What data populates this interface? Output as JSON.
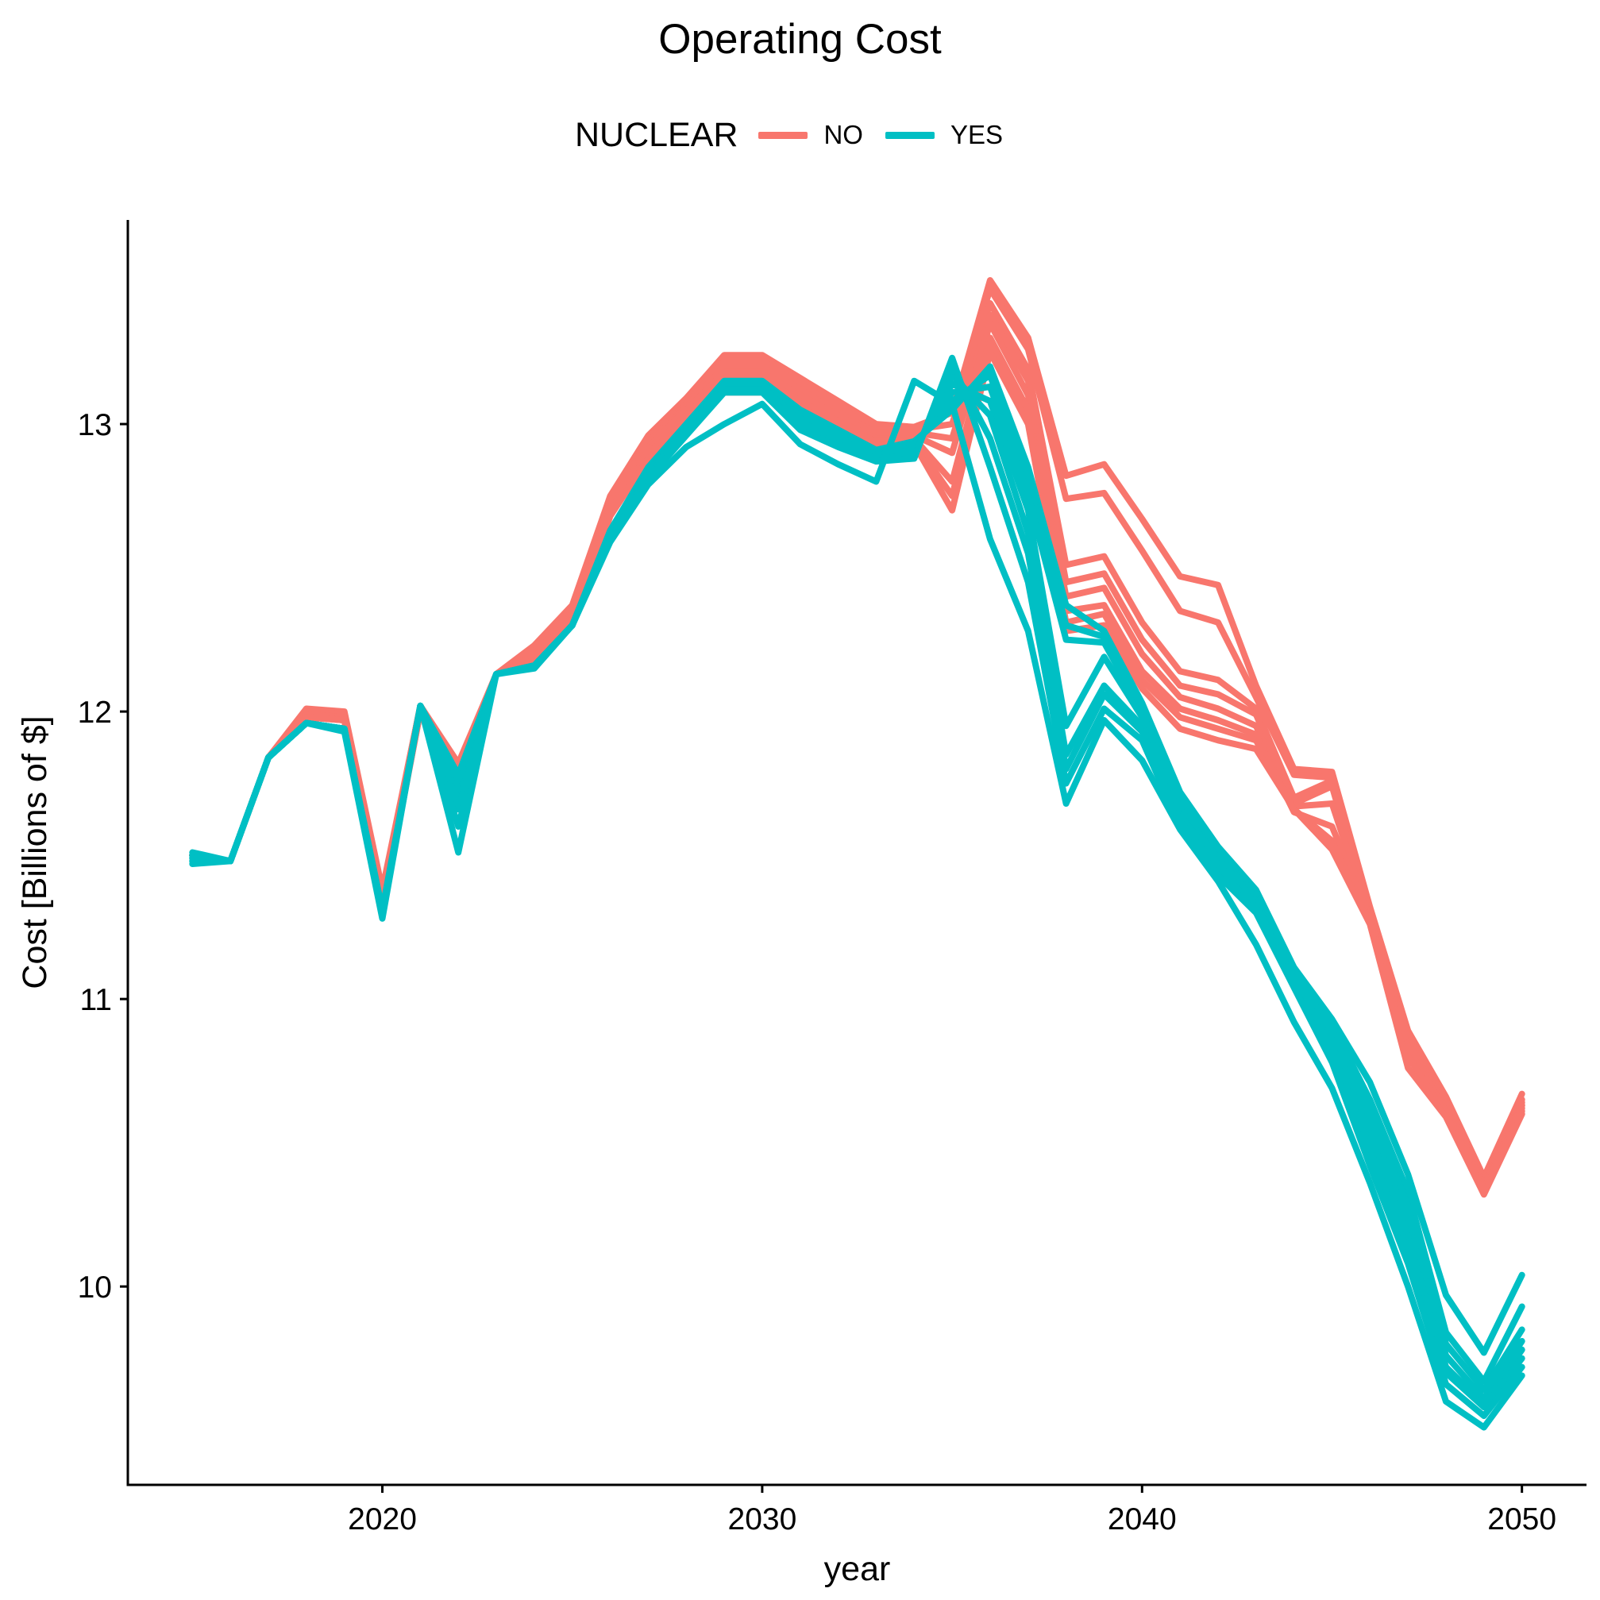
{
  "chart_data": {
    "type": "line",
    "title": "Operating Cost",
    "xlabel": "year",
    "ylabel": "Cost [Billions of $]",
    "xlim": [
      2013.3,
      2051.7
    ],
    "ylim": [
      9.31,
      13.71
    ],
    "x_ticks": [
      2020,
      2030,
      2040,
      2050
    ],
    "y_ticks": [
      10,
      11,
      12,
      13
    ],
    "grid": false,
    "legend": {
      "title": "NUCLEAR",
      "placement": "top",
      "entries": [
        {
          "label": "NO",
          "color": "#F8766D"
        },
        {
          "label": "YES",
          "color": "#00BFC4"
        }
      ]
    },
    "x": [
      2015,
      2016,
      2017,
      2018,
      2019,
      2020,
      2021,
      2022,
      2023,
      2024,
      2025,
      2026,
      2027,
      2028,
      2029,
      2030,
      2031,
      2032,
      2033,
      2034,
      2035,
      2036,
      2037,
      2038,
      2039,
      2040,
      2041,
      2042,
      2043,
      2044,
      2045,
      2046,
      2047,
      2048,
      2049,
      2050
    ],
    "series": [
      {
        "group": "NO",
        "values": [
          11.5,
          11.48,
          11.84,
          12.01,
          12.0,
          11.38,
          12.02,
          11.82,
          12.13,
          12.23,
          12.37,
          12.75,
          12.96,
          13.09,
          13.24,
          13.24,
          13.16,
          13.08,
          13.0,
          12.99,
          13.04,
          13.5,
          13.3,
          12.82,
          12.86,
          12.67,
          12.47,
          12.44,
          12.09,
          11.8,
          11.79,
          11.32,
          10.89,
          10.66,
          10.38,
          10.67
        ]
      },
      {
        "group": "NO",
        "values": [
          11.5,
          11.48,
          11.84,
          12.0,
          11.99,
          11.37,
          12.02,
          11.81,
          12.13,
          12.22,
          12.36,
          12.74,
          12.95,
          13.08,
          13.23,
          13.23,
          13.15,
          13.07,
          12.99,
          12.99,
          13.04,
          13.47,
          13.26,
          12.74,
          12.76,
          12.56,
          12.35,
          12.31,
          12.05,
          11.78,
          11.77,
          11.31,
          10.88,
          10.65,
          10.37,
          10.65
        ]
      },
      {
        "group": "NO",
        "values": [
          11.5,
          11.48,
          11.84,
          12.0,
          11.99,
          11.36,
          12.02,
          11.8,
          12.13,
          12.21,
          12.35,
          12.73,
          12.94,
          13.07,
          13.22,
          13.22,
          13.14,
          13.06,
          12.98,
          12.98,
          13.0,
          13.42,
          13.19,
          12.51,
          12.54,
          12.31,
          12.14,
          12.11,
          12.01,
          11.7,
          11.76,
          11.3,
          10.87,
          10.64,
          10.36,
          10.64
        ]
      },
      {
        "group": "NO",
        "values": [
          11.5,
          11.48,
          11.84,
          11.99,
          11.98,
          11.35,
          12.02,
          11.79,
          12.13,
          12.2,
          12.34,
          12.72,
          12.93,
          13.06,
          13.2,
          13.2,
          13.12,
          13.04,
          12.97,
          12.97,
          12.95,
          13.38,
          13.15,
          12.45,
          12.48,
          12.25,
          12.09,
          12.06,
          11.99,
          11.68,
          11.74,
          11.29,
          10.86,
          10.63,
          10.35,
          10.63
        ]
      },
      {
        "group": "NO",
        "values": [
          11.5,
          11.48,
          11.84,
          11.99,
          11.98,
          11.34,
          12.01,
          11.78,
          12.13,
          12.19,
          12.33,
          12.71,
          12.92,
          13.05,
          13.18,
          13.18,
          13.1,
          13.03,
          12.96,
          12.96,
          12.9,
          13.35,
          13.1,
          12.4,
          12.43,
          12.2,
          12.05,
          12.01,
          11.95,
          11.67,
          11.68,
          11.28,
          10.85,
          10.62,
          10.35,
          10.63
        ]
      },
      {
        "group": "NO",
        "values": [
          11.5,
          11.48,
          11.84,
          11.98,
          11.97,
          11.33,
          12.01,
          11.78,
          12.13,
          12.18,
          12.32,
          12.7,
          12.91,
          13.03,
          13.16,
          13.16,
          13.08,
          13.01,
          12.95,
          12.95,
          12.8,
          13.3,
          13.05,
          12.35,
          12.37,
          12.14,
          12.01,
          11.97,
          11.92,
          11.65,
          11.6,
          11.28,
          10.83,
          10.61,
          10.34,
          10.62
        ]
      },
      {
        "group": "NO",
        "values": [
          11.5,
          11.48,
          11.84,
          11.98,
          11.97,
          11.32,
          12.0,
          11.77,
          12.13,
          12.17,
          12.31,
          12.69,
          12.9,
          13.01,
          13.14,
          13.14,
          13.06,
          12.99,
          12.94,
          12.94,
          12.75,
          13.28,
          13.02,
          12.31,
          12.34,
          12.11,
          11.98,
          11.94,
          11.9,
          11.66,
          11.55,
          11.27,
          10.8,
          10.6,
          10.33,
          10.61
        ]
      },
      {
        "group": "NO",
        "values": [
          11.5,
          11.48,
          11.84,
          11.98,
          11.97,
          11.31,
          12.0,
          11.76,
          12.13,
          12.16,
          12.3,
          12.68,
          12.88,
          12.99,
          13.11,
          13.11,
          13.04,
          12.97,
          12.93,
          12.93,
          12.7,
          13.25,
          13.0,
          12.28,
          12.3,
          12.08,
          11.94,
          11.9,
          11.87,
          11.66,
          11.52,
          11.26,
          10.76,
          10.59,
          10.32,
          10.6
        ]
      },
      {
        "group": "YES",
        "values": [
          11.51,
          11.48,
          11.84,
          11.96,
          11.94,
          11.31,
          12.02,
          11.78,
          12.13,
          12.16,
          12.3,
          12.63,
          12.85,
          13.0,
          13.15,
          13.15,
          13.05,
          12.98,
          12.91,
          12.94,
          13.05,
          13.2,
          12.85,
          12.37,
          12.28,
          12.03,
          11.72,
          11.53,
          11.38,
          11.11,
          10.93,
          10.71,
          10.39,
          9.97,
          9.77,
          10.04
        ]
      },
      {
        "group": "YES",
        "values": [
          11.5,
          11.48,
          11.84,
          11.96,
          11.94,
          11.3,
          12.02,
          11.77,
          12.13,
          12.16,
          12.3,
          12.62,
          12.84,
          12.99,
          13.14,
          13.14,
          13.04,
          12.97,
          12.9,
          12.93,
          13.08,
          13.17,
          12.8,
          12.3,
          12.26,
          12.02,
          11.7,
          11.51,
          11.36,
          11.1,
          10.91,
          10.65,
          10.33,
          9.84,
          9.67,
          9.93
        ]
      },
      {
        "group": "YES",
        "values": [
          11.5,
          11.48,
          11.84,
          11.96,
          11.94,
          11.3,
          12.02,
          11.74,
          12.13,
          12.16,
          12.3,
          12.62,
          12.84,
          12.99,
          13.14,
          13.14,
          13.03,
          12.96,
          12.89,
          12.92,
          13.11,
          13.13,
          12.75,
          12.25,
          12.24,
          12.0,
          11.68,
          11.5,
          11.35,
          11.09,
          10.89,
          10.61,
          10.28,
          9.8,
          9.64,
          9.85
        ]
      },
      {
        "group": "YES",
        "values": [
          11.49,
          11.48,
          11.84,
          11.96,
          11.94,
          11.3,
          12.02,
          11.7,
          12.13,
          12.16,
          12.3,
          12.61,
          12.83,
          12.98,
          13.13,
          13.13,
          13.02,
          12.95,
          12.89,
          12.91,
          13.14,
          13.08,
          12.7,
          11.95,
          12.19,
          11.98,
          11.66,
          11.49,
          11.34,
          11.08,
          10.86,
          10.57,
          10.22,
          9.76,
          9.61,
          9.81
        ]
      },
      {
        "group": "YES",
        "values": [
          11.49,
          11.48,
          11.84,
          11.96,
          11.94,
          11.29,
          12.02,
          11.68,
          12.13,
          12.16,
          12.3,
          12.61,
          12.83,
          12.98,
          13.13,
          13.13,
          13.01,
          12.94,
          12.88,
          12.9,
          13.17,
          13.03,
          12.62,
          11.85,
          12.09,
          11.95,
          11.64,
          11.47,
          11.33,
          11.07,
          10.84,
          10.53,
          10.17,
          9.72,
          9.59,
          9.78
        ]
      },
      {
        "group": "YES",
        "values": [
          11.48,
          11.48,
          11.84,
          11.96,
          11.94,
          11.29,
          12.02,
          11.66,
          12.13,
          12.16,
          12.3,
          12.6,
          12.82,
          12.97,
          13.12,
          13.12,
          12.99,
          12.93,
          12.88,
          12.89,
          13.2,
          12.95,
          12.55,
          11.8,
          12.06,
          11.93,
          11.62,
          11.45,
          11.32,
          11.06,
          10.82,
          10.48,
          10.12,
          9.7,
          9.58,
          9.75
        ]
      },
      {
        "group": "YES",
        "values": [
          11.48,
          11.48,
          11.84,
          11.96,
          11.94,
          11.29,
          12.02,
          11.6,
          12.13,
          12.16,
          12.3,
          12.6,
          12.81,
          12.96,
          13.11,
          13.11,
          12.98,
          12.92,
          12.87,
          12.88,
          13.23,
          12.85,
          12.45,
          11.75,
          12.01,
          11.9,
          11.6,
          11.43,
          11.3,
          11.04,
          10.78,
          10.42,
          10.08,
          9.66,
          9.55,
          9.72
        ]
      },
      {
        "group": "YES",
        "values": [
          11.47,
          11.48,
          11.84,
          11.96,
          11.93,
          11.28,
          12.02,
          11.51,
          12.13,
          12.15,
          12.3,
          12.59,
          12.79,
          12.92,
          13.0,
          13.07,
          12.93,
          12.86,
          12.8,
          13.15,
          13.07,
          12.6,
          12.28,
          11.68,
          11.97,
          11.83,
          11.59,
          11.41,
          11.19,
          10.92,
          10.69,
          10.36,
          10.0,
          9.6,
          9.51,
          9.69
        ]
      }
    ]
  }
}
